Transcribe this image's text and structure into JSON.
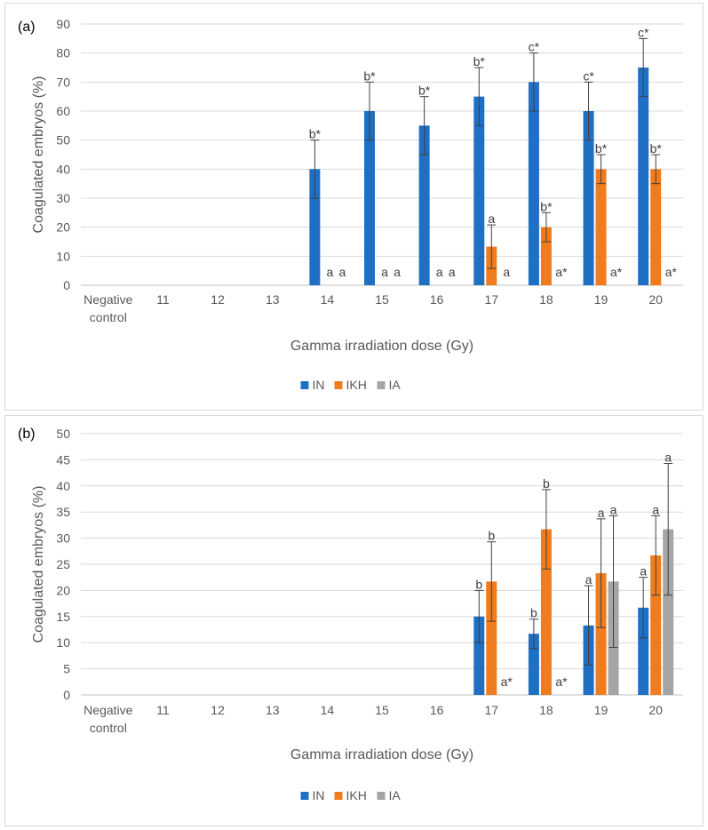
{
  "colors": {
    "IN": "#1f6fc5",
    "IKH": "#f07c1e",
    "IA": "#a5a5a5",
    "grid": "#d9d9d9",
    "axis": "#bfbfbf",
    "errbar": "#404040"
  },
  "chart_data": [
    {
      "type": "bar",
      "panel_label": "(a)",
      "ylabel": "Coagulated embryos (%)",
      "xlabel": "Gamma irradiation dose (Gy)",
      "ylim": [
        0,
        90
      ],
      "ytick_step": 10,
      "categories": [
        "Negative\ncontrol",
        "11",
        "12",
        "13",
        "14",
        "15",
        "16",
        "17",
        "18",
        "19",
        "20"
      ],
      "series": [
        {
          "name": "IN",
          "values": [
            0,
            0,
            0,
            0,
            40,
            60,
            55,
            65,
            70,
            60,
            75
          ],
          "errors": [
            0,
            0,
            0,
            0,
            10,
            10,
            10,
            10,
            10,
            10,
            10
          ],
          "labels": [
            "",
            "",
            "",
            "",
            "b*",
            "b*",
            "b*",
            "b*",
            "c*",
            "c*",
            "c*"
          ]
        },
        {
          "name": "IKH",
          "values": [
            0,
            0,
            0,
            0,
            0,
            0,
            0,
            13.3,
            20,
            40,
            40
          ],
          "errors": [
            0,
            0,
            0,
            0,
            0,
            0,
            0,
            7.5,
            5,
            5,
            5
          ],
          "labels": [
            "",
            "",
            "",
            "",
            "a",
            "a",
            "a",
            "a",
            "b*",
            "b*",
            "b*"
          ]
        },
        {
          "name": "IA",
          "values": [
            0,
            0,
            0,
            0,
            0,
            0,
            0,
            0,
            0,
            0,
            0
          ],
          "errors": [
            0,
            0,
            0,
            0,
            0,
            0,
            0,
            0,
            0,
            0,
            0
          ],
          "labels": [
            "",
            "",
            "",
            "",
            "a",
            "a",
            "a",
            "a",
            "a*",
            "a*",
            "a*"
          ]
        }
      ],
      "legend": [
        "IN",
        "IKH",
        "IA"
      ],
      "legend_position": "bottom"
    },
    {
      "type": "bar",
      "panel_label": "(b)",
      "ylabel": "Coagulated embryos (%)",
      "xlabel": "Gamma irradiation dose (Gy)",
      "ylim": [
        0,
        50
      ],
      "ytick_step": 5,
      "categories": [
        "Negative\ncontrol",
        "11",
        "12",
        "13",
        "14",
        "15",
        "16",
        "17",
        "18",
        "19",
        "20"
      ],
      "series": [
        {
          "name": "IN",
          "values": [
            0,
            0,
            0,
            0,
            0,
            0,
            0,
            15,
            11.7,
            13.3,
            16.7
          ],
          "errors": [
            0,
            0,
            0,
            0,
            0,
            0,
            0,
            5,
            2.8,
            7.6,
            5.8
          ],
          "labels": [
            "",
            "",
            "",
            "",
            "",
            "",
            "",
            "b",
            "b",
            "a",
            "a"
          ]
        },
        {
          "name": "IKH",
          "values": [
            0,
            0,
            0,
            0,
            0,
            0,
            0,
            21.7,
            31.7,
            23.3,
            26.7
          ],
          "errors": [
            0,
            0,
            0,
            0,
            0,
            0,
            0,
            7.6,
            7.6,
            10.4,
            7.6
          ],
          "labels": [
            "",
            "",
            "",
            "",
            "",
            "",
            "",
            "b",
            "b",
            "a",
            "a"
          ]
        },
        {
          "name": "IA",
          "values": [
            0,
            0,
            0,
            0,
            0,
            0,
            0,
            0,
            0,
            21.7,
            31.7
          ],
          "errors": [
            0,
            0,
            0,
            0,
            0,
            0,
            0,
            0,
            0,
            12.6,
            12.6
          ],
          "labels": [
            "",
            "",
            "",
            "",
            "",
            "",
            "",
            "a*",
            "a*",
            "a",
            "a"
          ]
        }
      ],
      "legend": [
        "IN",
        "IKH",
        "IA"
      ],
      "legend_position": "bottom"
    }
  ]
}
